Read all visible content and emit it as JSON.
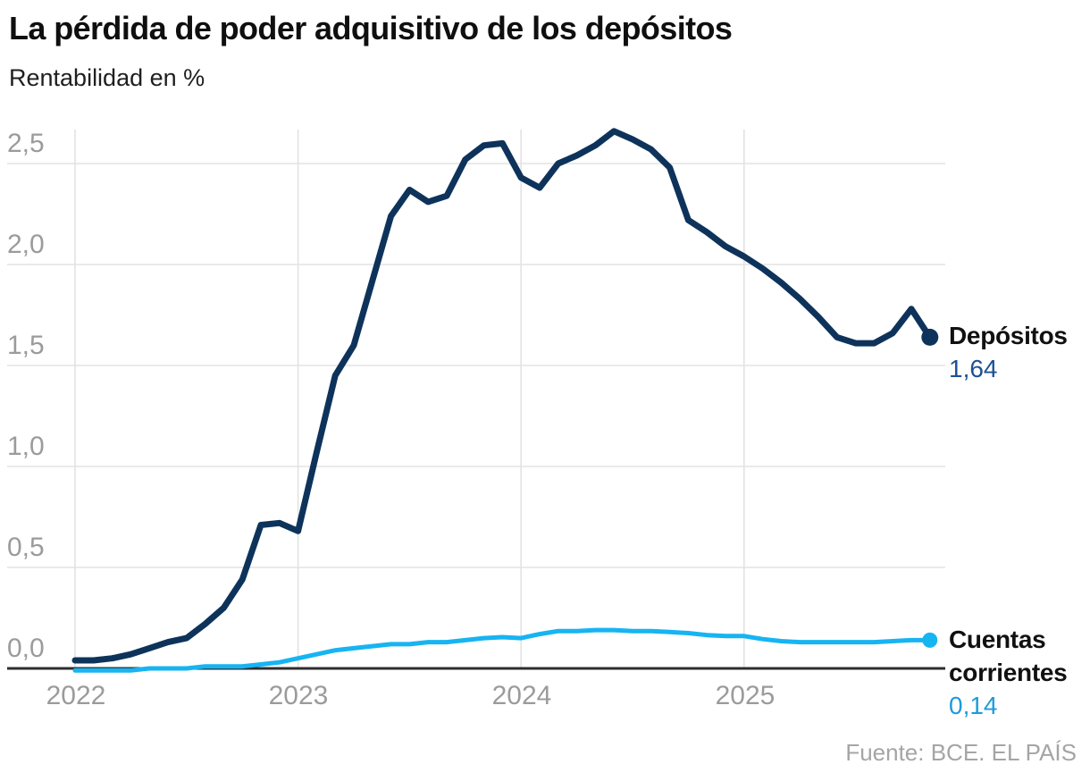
{
  "header": {
    "title": "La pérdida de poder adquisitivo de los depósitos",
    "subtitle": "Rentabilidad en %"
  },
  "footer": {
    "source": "Fuente: BCE. EL PAÍS"
  },
  "chart_data": {
    "type": "line",
    "title": "La pérdida de poder adquisitivo de los depósitos",
    "ylabel": "Rentabilidad en %",
    "frequency": "monthly",
    "x_range_years": [
      2022.0,
      2025.85
    ],
    "ylim": [
      -0.05,
      2.67
    ],
    "grid": true,
    "x_tick_labels": [
      "2022",
      "2023",
      "2024",
      "2025"
    ],
    "y_ticks": [
      "2,5",
      "2,0",
      "1,5",
      "1,0",
      "0,5",
      "0,0"
    ],
    "y_tick_values": [
      2.5,
      2.0,
      1.5,
      1.0,
      0.5,
      0.0
    ],
    "colors": {
      "grid": "#e3e3e3",
      "axis": "#2d2d2d",
      "tick_text": "#9b9b9b"
    },
    "series": [
      {
        "name": "Depósitos",
        "name_lines": [
          "Depósitos"
        ],
        "end_label": "1,64",
        "end_value": 1.64,
        "color": "#0e335b",
        "label_color": "#1d5191",
        "values": [
          0.04,
          0.04,
          0.05,
          0.07,
          0.1,
          0.13,
          0.15,
          0.22,
          0.3,
          0.44,
          0.71,
          0.72,
          0.68,
          1.07,
          1.45,
          1.6,
          1.92,
          2.24,
          2.37,
          2.31,
          2.34,
          2.52,
          2.59,
          2.6,
          2.43,
          2.38,
          2.5,
          2.54,
          2.59,
          2.66,
          2.62,
          2.57,
          2.48,
          2.22,
          2.16,
          2.09,
          2.04,
          1.98,
          1.91,
          1.83,
          1.74,
          1.64,
          1.61,
          1.61,
          1.66,
          1.78,
          1.64
        ]
      },
      {
        "name": "Cuentas corrientes",
        "name_lines": [
          "Cuentas",
          "corrientes"
        ],
        "end_label": "0,14",
        "end_value": 0.14,
        "color": "#17b4f2",
        "label_color": "#1d9bdb",
        "values": [
          -0.01,
          -0.01,
          -0.01,
          -0.01,
          0.0,
          0.0,
          0.0,
          0.01,
          0.01,
          0.01,
          0.02,
          0.03,
          0.05,
          0.07,
          0.09,
          0.1,
          0.11,
          0.12,
          0.12,
          0.13,
          0.13,
          0.14,
          0.15,
          0.155,
          0.15,
          0.17,
          0.185,
          0.185,
          0.19,
          0.19,
          0.185,
          0.185,
          0.18,
          0.175,
          0.165,
          0.16,
          0.16,
          0.145,
          0.135,
          0.13,
          0.13,
          0.13,
          0.13,
          0.13,
          0.135,
          0.14,
          0.14
        ]
      }
    ]
  }
}
